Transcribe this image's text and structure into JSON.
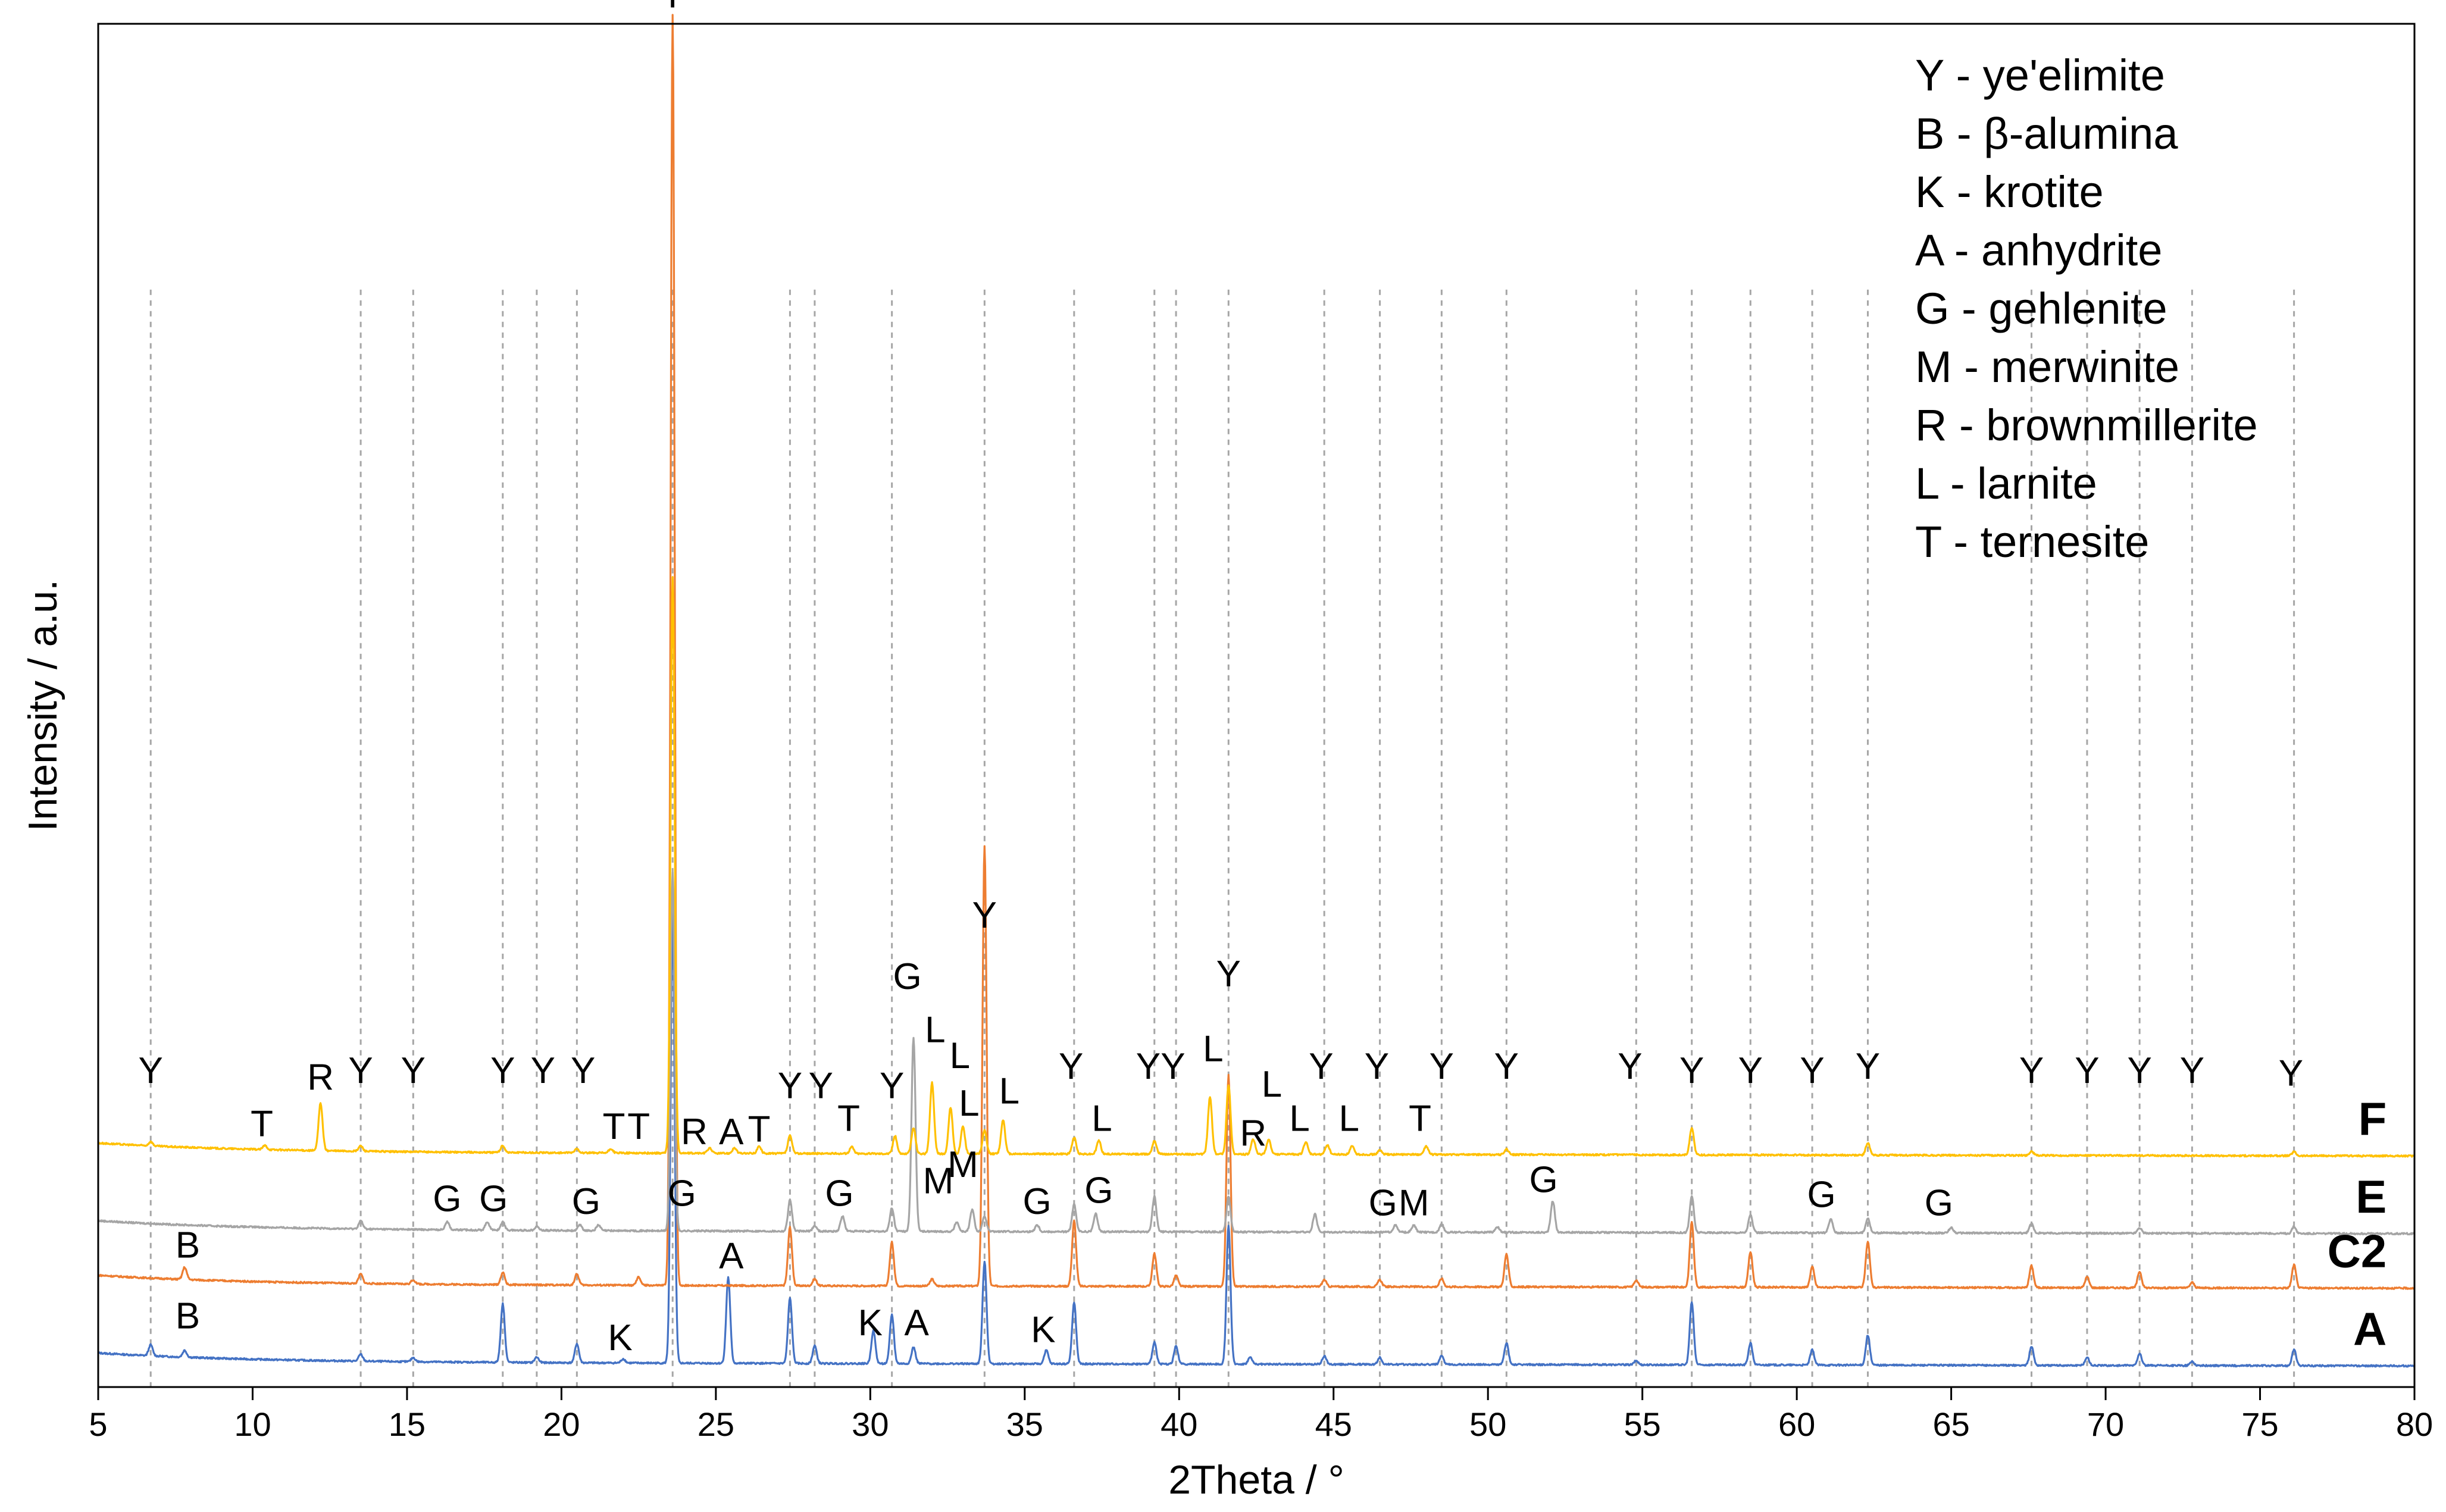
{
  "chart_data": {
    "type": "line",
    "title": "",
    "xlabel": "2Theta / °",
    "ylabel": "Intensity / a.u.",
    "xlim": [
      5,
      80
    ],
    "ylim": [
      0,
      100
    ],
    "xticks": [
      5,
      10,
      15,
      20,
      25,
      30,
      35,
      40,
      45,
      50,
      55,
      60,
      65,
      70,
      75,
      80
    ],
    "grid": false,
    "legend_position": "top-right",
    "legend": [
      "Y - ye'elimite",
      "B - β-alumina",
      "K - krotite",
      "A - anhydrite",
      "G - gehlenite",
      "M - merwinite",
      "R - brownmillerite",
      "L - larnite",
      "T - ternesite"
    ],
    "reference_lines_x": [
      6.7,
      13.5,
      15.2,
      18.1,
      19.2,
      20.5,
      23.6,
      27.4,
      28.2,
      30.7,
      33.7,
      36.6,
      39.2,
      39.9,
      41.6,
      44.7,
      46.5,
      48.5,
      50.6,
      54.8,
      56.6,
      58.5,
      60.5,
      62.3,
      67.6,
      69.4,
      71.1,
      72.8,
      76.1
    ],
    "series": [
      {
        "name": "A",
        "color": "#4472C4",
        "baseline": 1.8,
        "peaks": [
          [
            6.7,
            0.8
          ],
          [
            7.8,
            0.5
          ],
          [
            13.5,
            0.5
          ],
          [
            15.2,
            0.3
          ],
          [
            18.1,
            4.3
          ],
          [
            19.2,
            0.4
          ],
          [
            20.5,
            1.4
          ],
          [
            22.0,
            0.3
          ],
          [
            23.6,
            33.0
          ],
          [
            25.4,
            6.3
          ],
          [
            27.4,
            4.8
          ],
          [
            28.2,
            1.3
          ],
          [
            30.1,
            2.4
          ],
          [
            30.7,
            3.6
          ],
          [
            31.4,
            1.2
          ],
          [
            33.7,
            7.5
          ],
          [
            35.7,
            1.0
          ],
          [
            36.6,
            4.5
          ],
          [
            39.2,
            1.6
          ],
          [
            39.9,
            1.3
          ],
          [
            41.6,
            10.2
          ],
          [
            42.3,
            0.5
          ],
          [
            44.7,
            0.6
          ],
          [
            46.5,
            0.5
          ],
          [
            48.5,
            0.6
          ],
          [
            50.6,
            1.6
          ],
          [
            54.8,
            0.3
          ],
          [
            56.6,
            4.6
          ],
          [
            58.5,
            1.6
          ],
          [
            60.5,
            1.1
          ],
          [
            62.3,
            2.2
          ],
          [
            67.6,
            1.4
          ],
          [
            69.4,
            0.6
          ],
          [
            71.1,
            0.9
          ],
          [
            72.8,
            0.3
          ],
          [
            76.1,
            1.2
          ]
        ]
      },
      {
        "name": "C2",
        "color": "#ED7D31",
        "baseline": 7.5,
        "peaks": [
          [
            7.8,
            0.9
          ],
          [
            13.5,
            0.7
          ],
          [
            15.2,
            0.3
          ],
          [
            18.1,
            0.9
          ],
          [
            20.5,
            0.8
          ],
          [
            22.5,
            0.6
          ],
          [
            23.6,
            93.2
          ],
          [
            27.4,
            4.3
          ],
          [
            28.2,
            0.5
          ],
          [
            30.7,
            3.2
          ],
          [
            32.0,
            0.5
          ],
          [
            33.7,
            32.3
          ],
          [
            36.6,
            4.8
          ],
          [
            39.2,
            2.4
          ],
          [
            39.9,
            0.8
          ],
          [
            41.6,
            15.5
          ],
          [
            44.7,
            0.5
          ],
          [
            46.5,
            0.5
          ],
          [
            48.5,
            0.6
          ],
          [
            50.6,
            2.4
          ],
          [
            54.8,
            0.5
          ],
          [
            56.6,
            4.8
          ],
          [
            58.5,
            2.6
          ],
          [
            60.5,
            1.5
          ],
          [
            62.3,
            3.4
          ],
          [
            67.6,
            1.6
          ],
          [
            69.4,
            0.8
          ],
          [
            71.1,
            1.2
          ],
          [
            72.8,
            0.4
          ],
          [
            76.1,
            1.7
          ]
        ]
      },
      {
        "name": "E",
        "color": "#A5A5A5",
        "baseline": 11.5,
        "peaks": [
          [
            13.5,
            0.6
          ],
          [
            16.3,
            0.6
          ],
          [
            17.6,
            0.6
          ],
          [
            18.1,
            0.6
          ],
          [
            19.2,
            0.3
          ],
          [
            20.6,
            0.4
          ],
          [
            21.2,
            0.4
          ],
          [
            23.6,
            26.3
          ],
          [
            27.4,
            2.3
          ],
          [
            28.2,
            0.4
          ],
          [
            29.1,
            1.1
          ],
          [
            30.7,
            1.7
          ],
          [
            31.4,
            14.2
          ],
          [
            32.8,
            0.7
          ],
          [
            33.3,
            1.6
          ],
          [
            33.7,
            1.1
          ],
          [
            35.4,
            0.5
          ],
          [
            36.6,
            2.0
          ],
          [
            37.3,
            1.3
          ],
          [
            39.2,
            2.6
          ],
          [
            41.6,
            2.6
          ],
          [
            44.4,
            1.3
          ],
          [
            47.0,
            0.5
          ],
          [
            47.6,
            0.5
          ],
          [
            48.5,
            0.6
          ],
          [
            50.3,
            0.4
          ],
          [
            52.1,
            2.3
          ],
          [
            56.6,
            2.7
          ],
          [
            58.5,
            1.3
          ],
          [
            61.1,
            1.0
          ],
          [
            62.3,
            1.1
          ],
          [
            65.0,
            0.4
          ],
          [
            67.6,
            0.7
          ],
          [
            71.1,
            0.4
          ],
          [
            76.1,
            0.5
          ]
        ]
      },
      {
        "name": "F",
        "color": "#FFC000",
        "baseline": 17.2,
        "peaks": [
          [
            6.7,
            0.3
          ],
          [
            10.4,
            0.3
          ],
          [
            12.2,
            3.5
          ],
          [
            13.5,
            0.4
          ],
          [
            18.1,
            0.5
          ],
          [
            20.5,
            0.3
          ],
          [
            21.6,
            0.3
          ],
          [
            23.6,
            42.3
          ],
          [
            24.8,
            0.4
          ],
          [
            25.6,
            0.4
          ],
          [
            26.4,
            0.5
          ],
          [
            27.4,
            1.3
          ],
          [
            29.4,
            0.5
          ],
          [
            30.8,
            1.3
          ],
          [
            31.4,
            1.9
          ],
          [
            32.0,
            5.2
          ],
          [
            32.6,
            3.4
          ],
          [
            33.0,
            2.0
          ],
          [
            33.7,
            1.7
          ],
          [
            34.3,
            2.5
          ],
          [
            36.6,
            1.2
          ],
          [
            37.4,
            1.0
          ],
          [
            39.2,
            1.0
          ],
          [
            41.0,
            4.2
          ],
          [
            41.6,
            5.1
          ],
          [
            42.4,
            1.1
          ],
          [
            42.9,
            1.1
          ],
          [
            44.1,
            0.9
          ],
          [
            44.8,
            0.7
          ],
          [
            45.6,
            0.6
          ],
          [
            46.5,
            0.3
          ],
          [
            48.0,
            0.6
          ],
          [
            50.6,
            0.4
          ],
          [
            56.6,
            2.0
          ],
          [
            62.3,
            0.9
          ],
          [
            67.6,
            0.3
          ],
          [
            76.1,
            0.3
          ]
        ]
      }
    ],
    "peak_labels": [
      {
        "text": "Y",
        "x": 23.6,
        "y": 101.2
      },
      {
        "text": "Y",
        "x": 33.7,
        "y": 33.7
      },
      {
        "text": "G",
        "x": 31.2,
        "y": 29.2
      },
      {
        "text": "Y",
        "x": 41.6,
        "y": 29.4
      },
      {
        "text": "Y",
        "x": 6.7,
        "y": 22.3
      },
      {
        "text": "T",
        "x": 10.3,
        "y": 18.4
      },
      {
        "text": "R",
        "x": 12.2,
        "y": 21.8
      },
      {
        "text": "Y",
        "x": 13.5,
        "y": 22.3
      },
      {
        "text": "Y",
        "x": 15.2,
        "y": 22.3
      },
      {
        "text": "Y",
        "x": 18.1,
        "y": 22.3
      },
      {
        "text": "Y",
        "x": 19.4,
        "y": 22.3
      },
      {
        "text": "Y",
        "x": 20.7,
        "y": 22.3
      },
      {
        "text": "T",
        "x": 21.7,
        "y": 18.2
      },
      {
        "text": "T",
        "x": 22.5,
        "y": 18.2
      },
      {
        "text": "R",
        "x": 24.3,
        "y": 17.8
      },
      {
        "text": "A",
        "x": 25.5,
        "y": 17.8
      },
      {
        "text": "T",
        "x": 26.4,
        "y": 18.0
      },
      {
        "text": "Y",
        "x": 27.4,
        "y": 21.2
      },
      {
        "text": "Y",
        "x": 28.4,
        "y": 21.2
      },
      {
        "text": "T",
        "x": 29.3,
        "y": 18.8
      },
      {
        "text": "Y",
        "x": 30.7,
        "y": 21.2
      },
      {
        "text": "L",
        "x": 32.1,
        "y": 25.3
      },
      {
        "text": "L",
        "x": 32.9,
        "y": 23.4
      },
      {
        "text": "L",
        "x": 33.2,
        "y": 19.9
      },
      {
        "text": "L",
        "x": 34.5,
        "y": 20.8
      },
      {
        "text": "Y",
        "x": 36.5,
        "y": 22.6
      },
      {
        "text": "L",
        "x": 37.5,
        "y": 18.8
      },
      {
        "text": "Y",
        "x": 39.0,
        "y": 22.6
      },
      {
        "text": "Y",
        "x": 39.8,
        "y": 22.6
      },
      {
        "text": "L",
        "x": 41.1,
        "y": 23.9
      },
      {
        "text": "R",
        "x": 42.4,
        "y": 17.7
      },
      {
        "text": "L",
        "x": 43.0,
        "y": 21.3
      },
      {
        "text": "L",
        "x": 43.9,
        "y": 18.8
      },
      {
        "text": "Y",
        "x": 44.6,
        "y": 22.6
      },
      {
        "text": "L",
        "x": 45.5,
        "y": 18.8
      },
      {
        "text": "Y",
        "x": 46.4,
        "y": 22.6
      },
      {
        "text": "T",
        "x": 47.8,
        "y": 18.8
      },
      {
        "text": "Y",
        "x": 48.5,
        "y": 22.6
      },
      {
        "text": "Y",
        "x": 50.6,
        "y": 22.6
      },
      {
        "text": "Y",
        "x": 54.6,
        "y": 22.6
      },
      {
        "text": "Y",
        "x": 56.6,
        "y": 22.3
      },
      {
        "text": "Y",
        "x": 58.5,
        "y": 22.3
      },
      {
        "text": "Y",
        "x": 60.5,
        "y": 22.3
      },
      {
        "text": "Y",
        "x": 62.3,
        "y": 22.6
      },
      {
        "text": "Y",
        "x": 67.6,
        "y": 22.3
      },
      {
        "text": "Y",
        "x": 69.4,
        "y": 22.3
      },
      {
        "text": "Y",
        "x": 71.1,
        "y": 22.3
      },
      {
        "text": "Y",
        "x": 72.8,
        "y": 22.3
      },
      {
        "text": "Y",
        "x": 76.0,
        "y": 22.1
      },
      {
        "text": "G",
        "x": 16.3,
        "y": 12.9
      },
      {
        "text": "G",
        "x": 17.8,
        "y": 12.9
      },
      {
        "text": "G",
        "x": 20.8,
        "y": 12.7
      },
      {
        "text": "G",
        "x": 23.9,
        "y": 13.3
      },
      {
        "text": "G",
        "x": 29.0,
        "y": 13.3
      },
      {
        "text": "M",
        "x": 32.2,
        "y": 14.2
      },
      {
        "text": "M",
        "x": 33.0,
        "y": 15.4
      },
      {
        "text": "G",
        "x": 35.4,
        "y": 12.7
      },
      {
        "text": "G",
        "x": 37.4,
        "y": 13.5
      },
      {
        "text": "G",
        "x": 46.6,
        "y": 12.6
      },
      {
        "text": "M",
        "x": 47.6,
        "y": 12.6
      },
      {
        "text": "G",
        "x": 51.8,
        "y": 14.3
      },
      {
        "text": "G",
        "x": 60.8,
        "y": 13.2
      },
      {
        "text": "G",
        "x": 64.6,
        "y": 12.6
      },
      {
        "text": "B",
        "x": 7.9,
        "y": 9.5
      },
      {
        "text": "A",
        "x": 25.5,
        "y": 8.7
      },
      {
        "text": "B",
        "x": 7.9,
        "y": 4.3
      },
      {
        "text": "K",
        "x": 21.9,
        "y": 2.7
      },
      {
        "text": "K",
        "x": 30.0,
        "y": 3.8
      },
      {
        "text": "A",
        "x": 31.5,
        "y": 3.8
      },
      {
        "text": "K",
        "x": 35.6,
        "y": 3.3
      }
    ]
  }
}
